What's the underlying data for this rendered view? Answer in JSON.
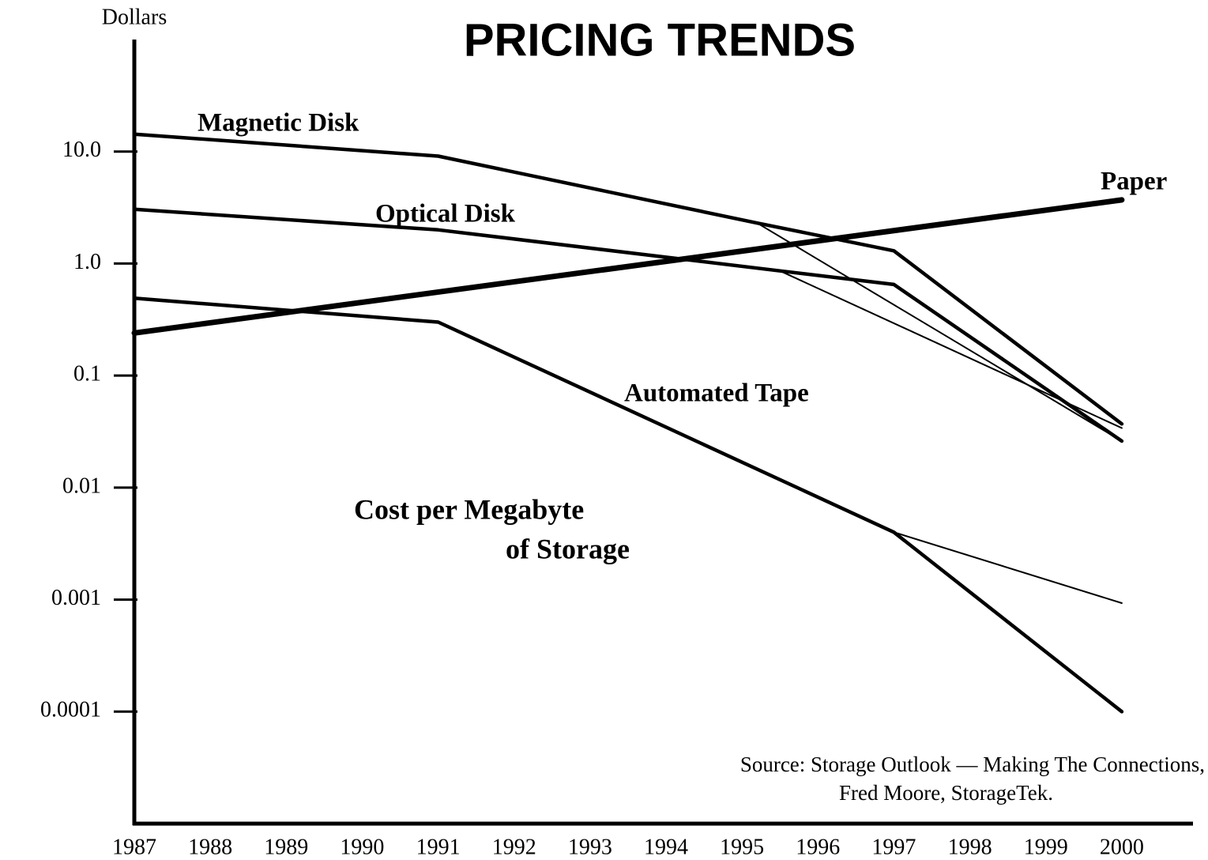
{
  "chart_data": {
    "type": "line",
    "title": "PRICING TRENDS",
    "ylabel": "Dollars",
    "log_y": true,
    "ylim": [
      1e-05,
      100
    ],
    "yticks": [
      {
        "value": 10,
        "label": "10.0"
      },
      {
        "value": 1,
        "label": "1.0"
      },
      0.1,
      0.01,
      0.001,
      0.0001
    ],
    "xlim": [
      1987,
      2001
    ],
    "xticks": [
      1987,
      1988,
      1989,
      1990,
      1991,
      1992,
      1993,
      1994,
      1995,
      1996,
      1997,
      1998,
      1999,
      2000
    ],
    "series": [
      {
        "name": "Magnetic Disk",
        "color": "#000000",
        "x": [
          1987,
          1991,
          1995.2,
          1997,
          2000
        ],
        "values": [
          14.3,
          9.1,
          2.3,
          1.3,
          0.037
        ]
      },
      {
        "color": "#000000",
        "x": [
          1995.2,
          2000
        ],
        "values": [
          2.3,
          0.026
        ]
      },
      {
        "name": "Optical Disk",
        "color": "#000000",
        "x": [
          1987,
          1991,
          1995.5,
          1997,
          2000
        ],
        "values": [
          3.05,
          2.0,
          0.86,
          0.65,
          0.026
        ]
      },
      {
        "color": "#000000",
        "x": [
          1995.5,
          2000
        ],
        "values": [
          0.86,
          0.034
        ]
      },
      {
        "name": "Automated Tape",
        "color": "#000000",
        "x": [
          1987,
          1991,
          1997,
          2000
        ],
        "values": [
          0.49,
          0.3,
          0.004,
          0.0001
        ]
      },
      {
        "color": "#000000",
        "x": [
          1997,
          2000
        ],
        "values": [
          0.004,
          0.00093
        ]
      },
      {
        "name": "Paper",
        "color": "#000000",
        "x": [
          1987,
          2000
        ],
        "values": [
          0.24,
          3.7
        ]
      }
    ],
    "annotation": [
      "Cost per Megabyte",
      "of Storage"
    ],
    "source": [
      "Source:  Storage Outlook — Making The Connections,",
      "Fred Moore, StorageTek."
    ]
  }
}
